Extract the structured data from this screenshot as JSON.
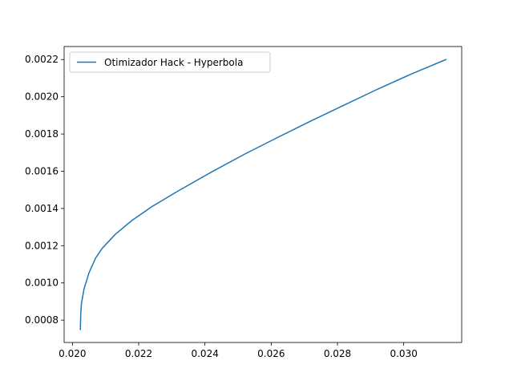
{
  "chart_data": {
    "type": "line",
    "title": "",
    "xlabel": "",
    "ylabel": "",
    "xlim": [
      0.01975,
      0.03175
    ],
    "ylim": [
      0.00068,
      0.00227
    ],
    "xticks": [
      0.02,
      0.022,
      0.024,
      0.026,
      0.028,
      0.03
    ],
    "xtick_labels": [
      "0.020",
      "0.022",
      "0.024",
      "0.026",
      "0.028",
      "0.030"
    ],
    "yticks": [
      0.0008,
      0.001,
      0.0012,
      0.0014,
      0.0016,
      0.0018,
      0.002,
      0.0022
    ],
    "ytick_labels": [
      "0.0008",
      "0.0010",
      "0.0012",
      "0.0014",
      "0.0016",
      "0.0018",
      "0.0020",
      "0.0022"
    ],
    "grid": false,
    "legend_position": "upper-left",
    "series": [
      {
        "name": "Otimizador Hack - Hyperbola",
        "color": "#1f77b4",
        "x": [
          0.03127,
          0.0302,
          0.0292,
          0.0282,
          0.0272,
          0.0262,
          0.0252,
          0.0242,
          0.0232,
          0.0224,
          0.0218,
          0.0213,
          0.0209,
          0.0207,
          0.0205,
          0.02035,
          0.02027,
          0.02025,
          0.02024
        ],
        "y": [
          0.0022,
          0.00212,
          0.00204,
          0.001955,
          0.00187,
          0.001782,
          0.001692,
          0.001596,
          0.001495,
          0.00141,
          0.001336,
          0.001262,
          0.001186,
          0.001134,
          0.001054,
          0.000967,
          0.000886,
          0.000825,
          0.00075
        ]
      }
    ]
  }
}
